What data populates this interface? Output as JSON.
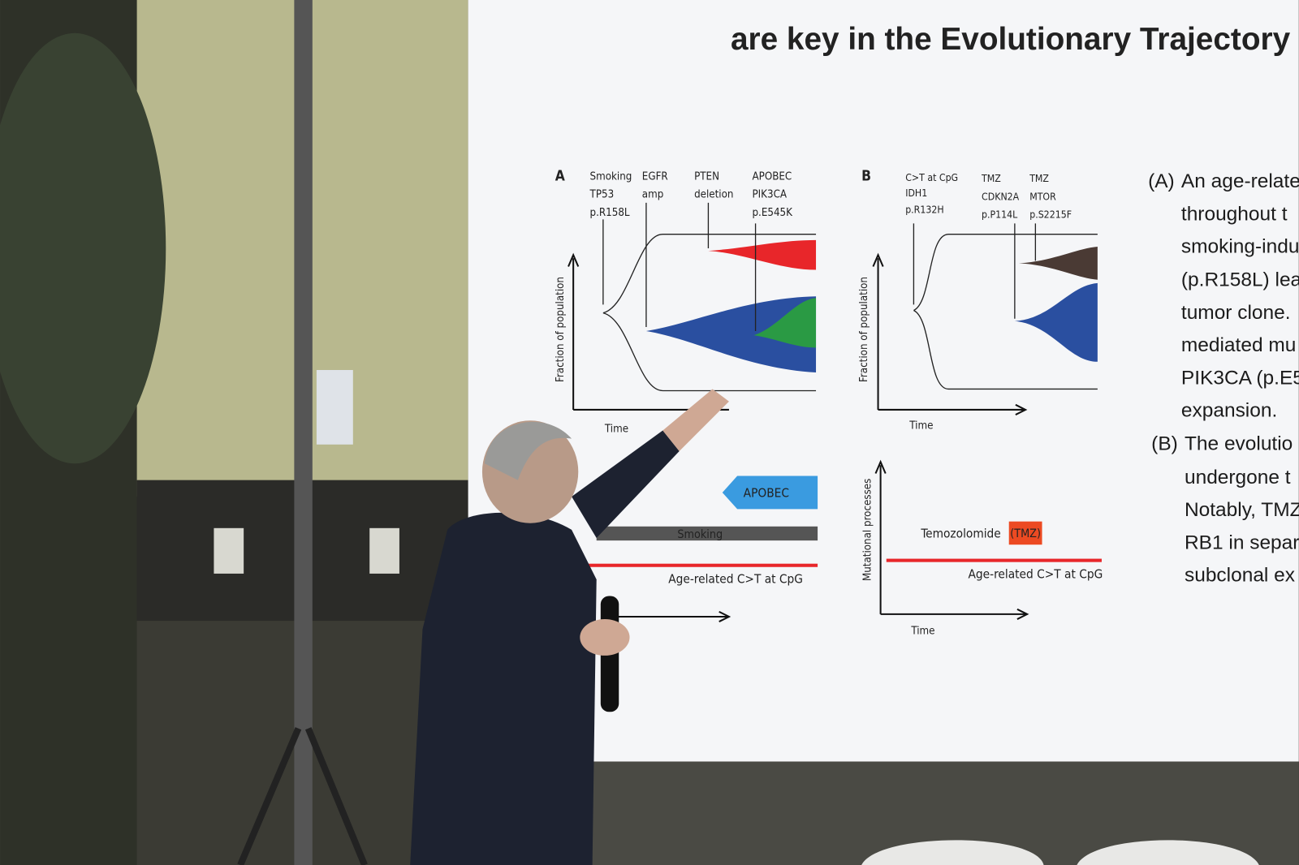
{
  "slide": {
    "title": "are key in the Evolutionary Trajectory o",
    "panel_a": {
      "label": "A",
      "events": [
        [
          "Smoking",
          "TP53",
          "p.R158L"
        ],
        [
          "EGFR",
          "amp"
        ],
        [
          "PTEN",
          "deletion"
        ],
        [
          "APOBEC",
          "PIK3CA",
          "p.E545K"
        ]
      ],
      "y_label": "Fraction of population",
      "x_label": "Time",
      "processes": [
        "APOBEC",
        "Smoking",
        "Age-related C>T at CpG"
      ]
    },
    "panel_b": {
      "label": "B",
      "events": [
        [
          "C>T at CpG",
          "IDH1",
          "p.R132H"
        ],
        [
          "TMZ",
          "CDKN2A",
          "p.P114L"
        ],
        [
          "TMZ",
          "MTOR",
          "p.S2215F"
        ]
      ],
      "y_label": "Fraction of population",
      "x_label": "Time",
      "process_y_label": "Mutational processes",
      "process_x_label": "Time",
      "processes": [
        "Temozolomide",
        "(TMZ)",
        "Age-related C>T at CpG"
      ]
    },
    "caption": {
      "a_marker": "(A)",
      "a_lines": [
        "An age-relate",
        "throughout t",
        "smoking-indu",
        "(p.R158L) lea",
        "tumor clone.",
        "mediated mu",
        "PIK3CA (p.E5",
        "expansion."
      ],
      "b_marker": "(B)",
      "b_lines": [
        "The evolutio",
        "undergone t",
        "Notably, TMZ",
        "RB1 in separ",
        "subclonal ex"
      ]
    }
  }
}
